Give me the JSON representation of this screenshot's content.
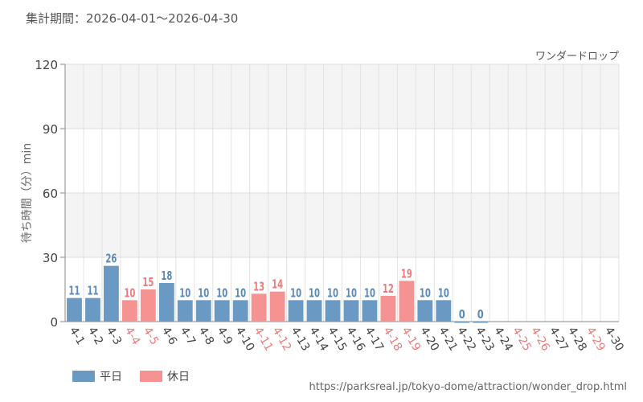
{
  "period_label": "集計期間：2026-04-01～2026-04-30",
  "source_url": "https://parksreal.jp/tokyo-dome/attraction/wonder_drop.html",
  "colors": {
    "weekday": "#6a9ac4",
    "holiday": "#f59393",
    "weekday_text": "#5b8ab8",
    "holiday_text": "#f07a7a"
  },
  "legend": [
    {
      "label": "平日",
      "kind": "weekday"
    },
    {
      "label": "休日",
      "kind": "holiday"
    }
  ],
  "chart_data": {
    "type": "bar",
    "title": "ワンダードロップ",
    "ylabel": "待ち時間（分）min",
    "xlabel": "",
    "ylim": [
      0,
      120
    ],
    "yticks": [
      0,
      30,
      60,
      90,
      120
    ],
    "grid": true,
    "legend_position": "bottom-left",
    "categories": [
      "4-1",
      "4-2",
      "4-3",
      "4-4",
      "4-5",
      "4-6",
      "4-7",
      "4-8",
      "4-9",
      "4-10",
      "4-11",
      "4-12",
      "4-13",
      "4-14",
      "4-15",
      "4-16",
      "4-17",
      "4-18",
      "4-19",
      "4-20",
      "4-21",
      "4-22",
      "4-23",
      "4-24",
      "4-25",
      "4-26",
      "4-27",
      "4-28",
      "4-29",
      "4-30"
    ],
    "values": [
      11,
      11,
      26,
      10,
      15,
      18,
      10,
      10,
      10,
      10,
      13,
      14,
      10,
      10,
      10,
      10,
      10,
      12,
      19,
      10,
      10,
      0,
      0,
      null,
      null,
      null,
      null,
      null,
      null,
      null
    ],
    "day_type": [
      "weekday",
      "weekday",
      "weekday",
      "holiday",
      "holiday",
      "weekday",
      "weekday",
      "weekday",
      "weekday",
      "weekday",
      "holiday",
      "holiday",
      "weekday",
      "weekday",
      "weekday",
      "weekday",
      "weekday",
      "holiday",
      "holiday",
      "weekday",
      "weekday",
      "weekday",
      "weekday",
      "weekday",
      "holiday",
      "holiday",
      "weekday",
      "weekday",
      "holiday",
      "weekday"
    ]
  }
}
